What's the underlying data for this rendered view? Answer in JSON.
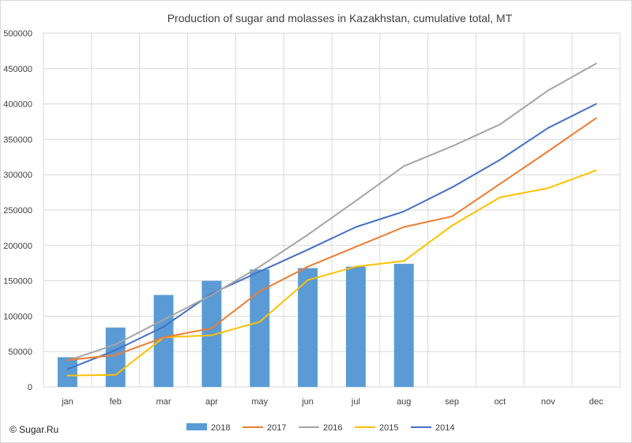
{
  "chart_data": {
    "type": "bar+line",
    "title": "Production of sugar and molasses in Kazakhstan, cumulative total, MT",
    "categories": [
      "jan",
      "feb",
      "mar",
      "apr",
      "may",
      "jun",
      "jul",
      "aug",
      "sep",
      "oct",
      "nov",
      "dec"
    ],
    "ylim": [
      0,
      500000
    ],
    "yticks": [
      "0",
      "50000",
      "100000",
      "150000",
      "200000",
      "250000",
      "300000",
      "350000",
      "400000",
      "450000",
      "500000"
    ],
    "grid": true,
    "legend_position": "bottom",
    "series": [
      {
        "name": "2018",
        "kind": "bar",
        "color": "#5b9bd5",
        "values": [
          42000,
          84000,
          130000,
          150000,
          166000,
          168000,
          170000,
          174000,
          null,
          null,
          null,
          null
        ]
      },
      {
        "name": "2017",
        "kind": "line",
        "color": "#ed7d31",
        "values": [
          38000,
          45000,
          70000,
          83000,
          135000,
          170000,
          198000,
          226000,
          241000,
          287000,
          333000,
          380000
        ]
      },
      {
        "name": "2016",
        "kind": "line",
        "color": "#a5a5a5",
        "values": [
          37000,
          60000,
          95000,
          130000,
          170000,
          215000,
          263000,
          312000,
          340000,
          371000,
          419000,
          457000
        ]
      },
      {
        "name": "2015",
        "kind": "line",
        "color": "#ffc000",
        "values": [
          16000,
          17000,
          70000,
          73000,
          92000,
          151000,
          170000,
          178000,
          228000,
          268000,
          281000,
          306000
        ]
      },
      {
        "name": "2014",
        "kind": "line",
        "color": "#4472c4",
        "values": [
          25000,
          52000,
          85000,
          132000,
          163000,
          194000,
          226000,
          248000,
          282000,
          321000,
          366000,
          400000
        ]
      }
    ]
  },
  "watermark": "© Sugar.Ru"
}
